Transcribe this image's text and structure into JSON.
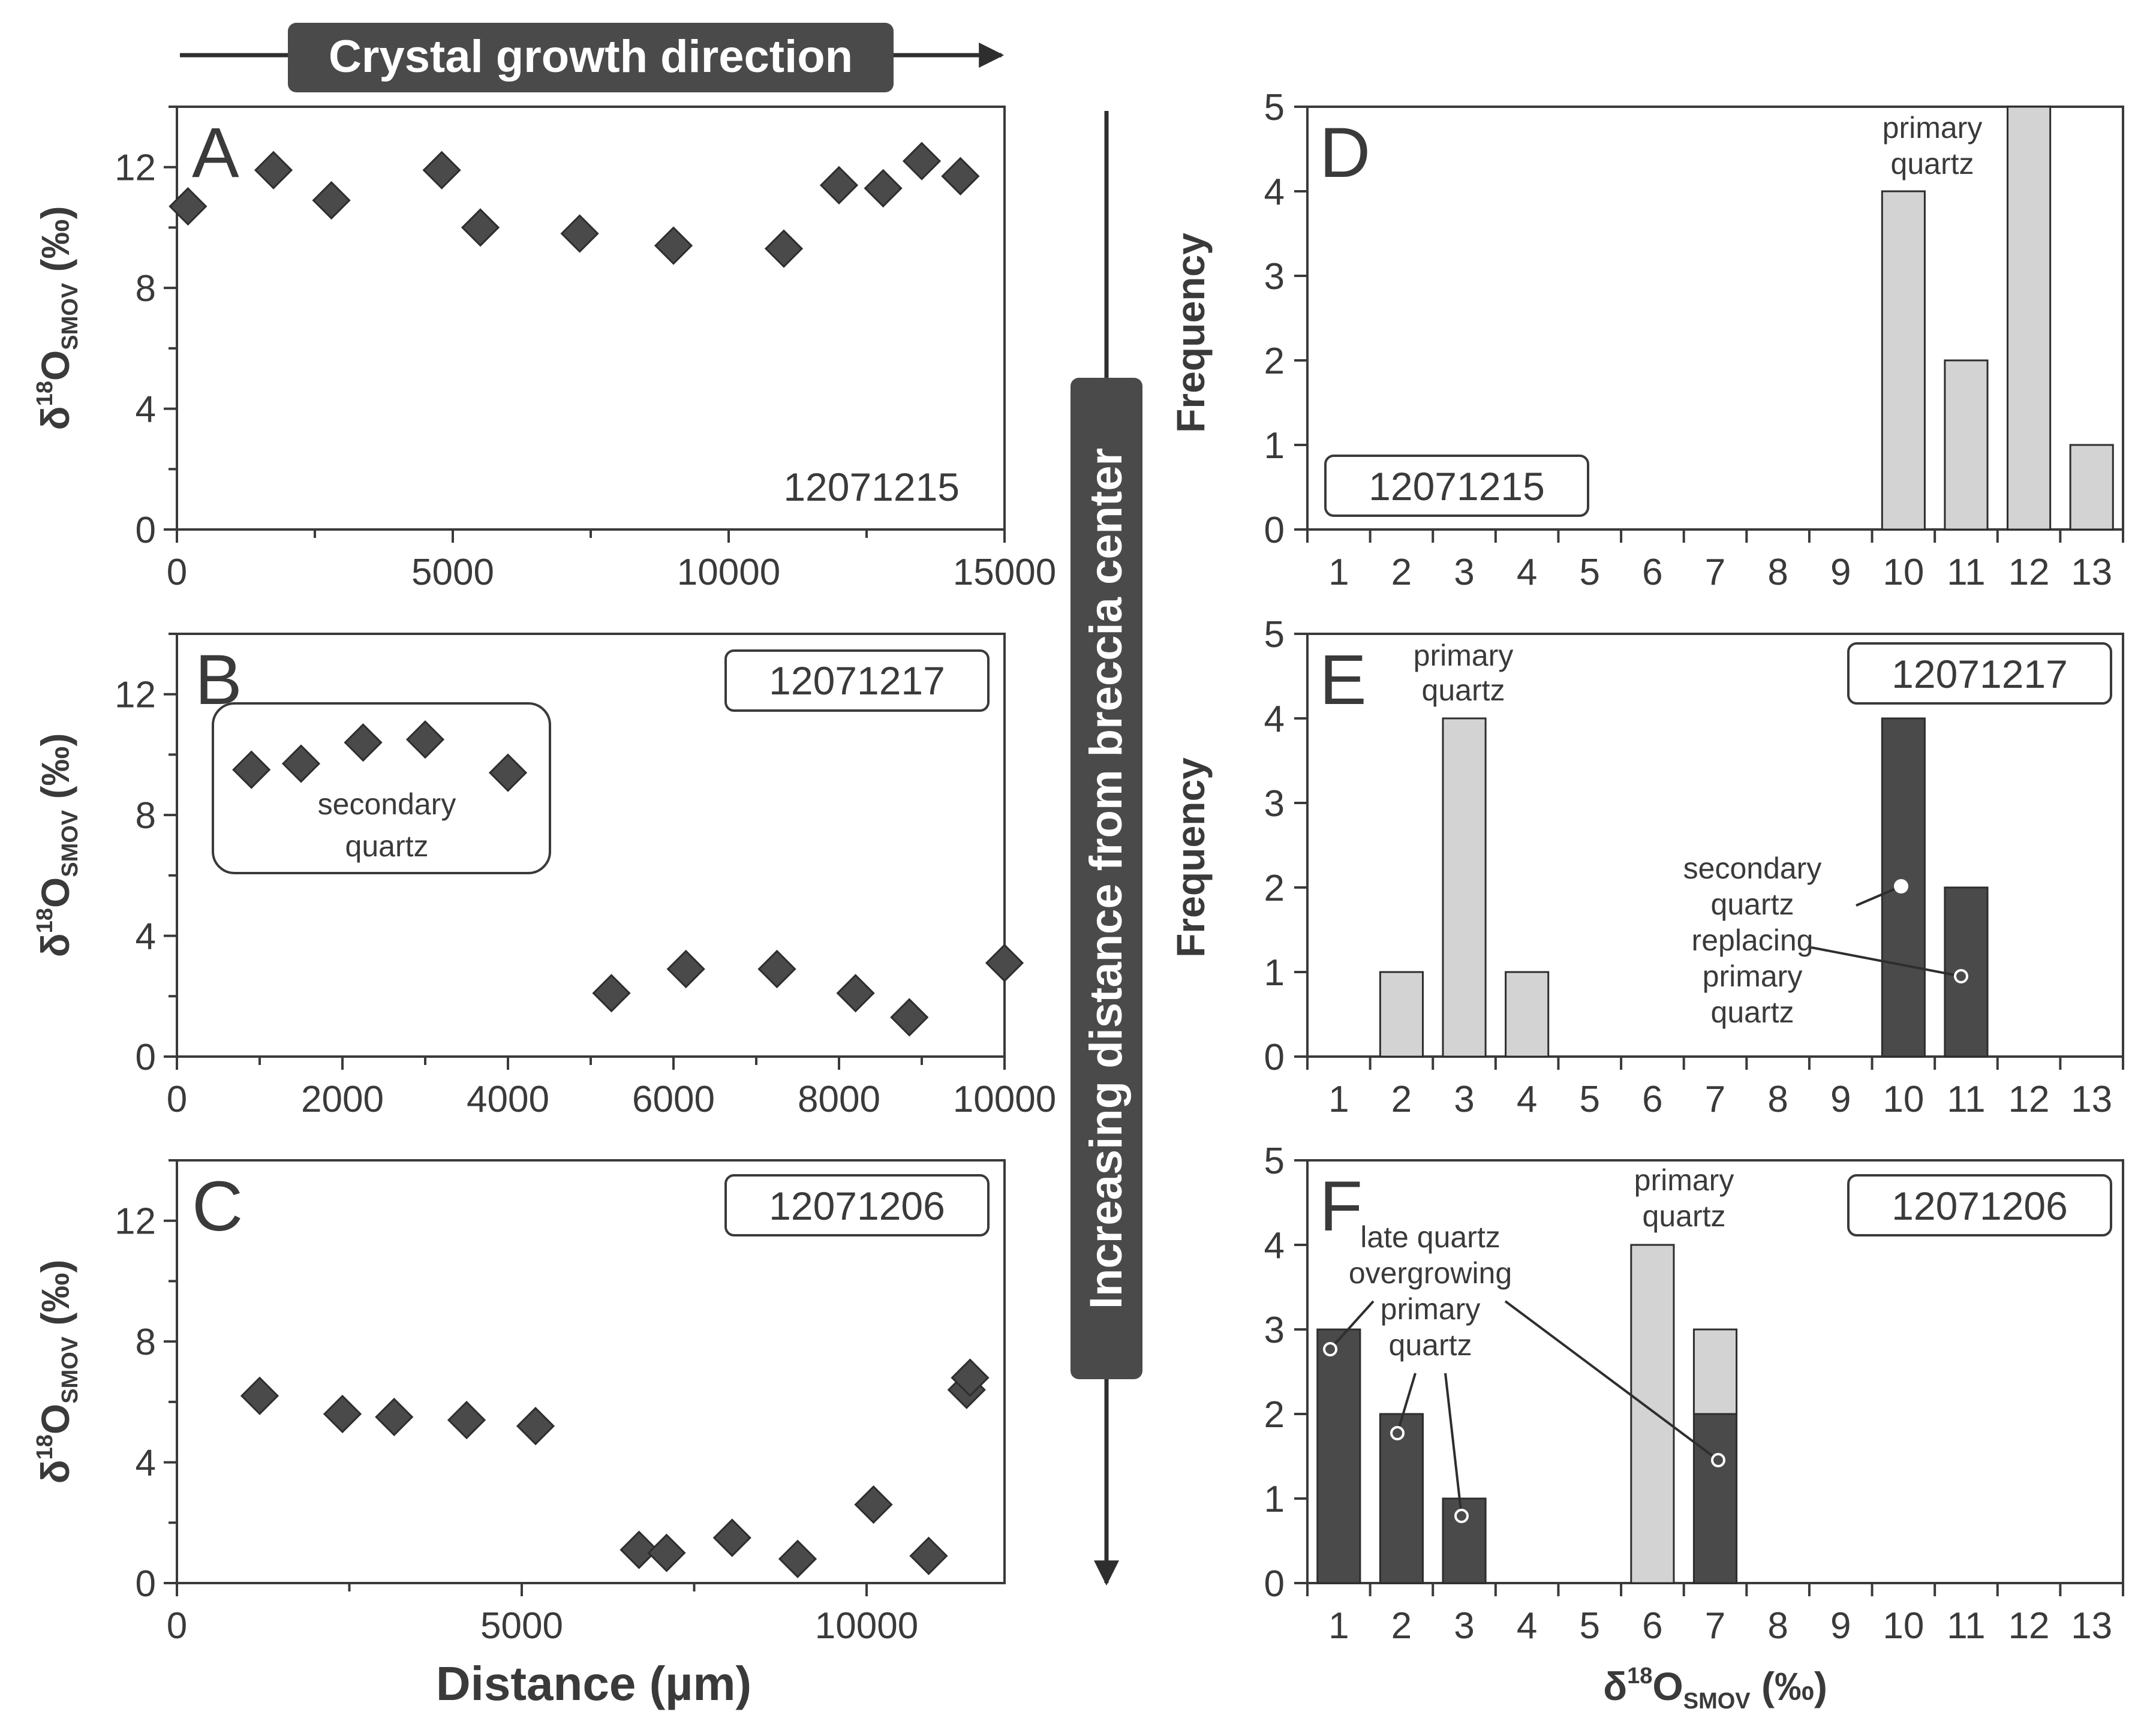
{
  "banner": {
    "label": "Crystal growth direction"
  },
  "side_arrow": {
    "label": "Increasing distance from breccia center"
  },
  "axis_text": {
    "y_delta": "δ",
    "y_sup": "18",
    "y_O": "O",
    "y_sub": "SMOV",
    "y_unit": " (‰)",
    "freq": "Frequency",
    "distance": "Distance (µm)"
  },
  "colors": {
    "diamond": "#4a4a4a",
    "bar_light": "#d3d3d3",
    "bar_dark": "#4a4a4a",
    "banner_bg": "#4a4a4a",
    "axis": "#3a3a3a"
  },
  "chart_data": [
    {
      "panel": "A",
      "type": "scatter",
      "sample": "12071215",
      "xlabel": "",
      "ylabel": "δ18OSMOV (‰)",
      "xlim": [
        0,
        15000
      ],
      "ylim": [
        0,
        14
      ],
      "xticks": [
        0,
        5000,
        10000,
        15000
      ],
      "yticks": [
        0,
        4,
        8,
        12
      ],
      "xtick_labels": [
        "0",
        "5000",
        "10000",
        "15000"
      ],
      "ytick_labels": [
        "0",
        "4",
        "8",
        "12"
      ],
      "points": [
        [
          200,
          10.7
        ],
        [
          1750,
          11.9
        ],
        [
          2800,
          10.9
        ],
        [
          4800,
          11.9
        ],
        [
          5500,
          10.0
        ],
        [
          7300,
          9.8
        ],
        [
          9000,
          9.4
        ],
        [
          11000,
          9.3
        ],
        [
          12000,
          11.4
        ],
        [
          12800,
          11.3
        ],
        [
          13500,
          12.2
        ],
        [
          14200,
          11.7
        ]
      ],
      "annotations": []
    },
    {
      "panel": "B",
      "type": "scatter",
      "sample": "12071217",
      "xlabel": "",
      "ylabel": "δ18OSMOV (‰)",
      "xlim": [
        0,
        10000
      ],
      "ylim": [
        0,
        14
      ],
      "xticks": [
        0,
        2000,
        4000,
        6000,
        8000,
        10000
      ],
      "yticks": [
        0,
        4,
        8,
        12
      ],
      "xtick_labels": [
        "0",
        "2000",
        "4000",
        "6000",
        "8000",
        "10000"
      ],
      "ytick_labels": [
        "0",
        "4",
        "8",
        "12"
      ],
      "points": [
        [
          900,
          9.5
        ],
        [
          1500,
          9.7
        ],
        [
          2250,
          10.4
        ],
        [
          3000,
          10.5
        ],
        [
          4000,
          9.4
        ],
        [
          5250,
          2.1
        ],
        [
          6150,
          2.9
        ],
        [
          7250,
          2.9
        ],
        [
          8200,
          2.1
        ],
        [
          8850,
          1.3
        ],
        [
          10000,
          3.1
        ]
      ],
      "annotations": [
        "secondary",
        "quartz"
      ]
    },
    {
      "panel": "C",
      "type": "scatter",
      "sample": "12071206",
      "xlabel": "Distance (µm)",
      "ylabel": "δ18OSMOV (‰)",
      "xlim": [
        0,
        12000
      ],
      "ylim": [
        0,
        14
      ],
      "xticks": [
        0,
        5000,
        10000
      ],
      "yticks": [
        0,
        4,
        8,
        12
      ],
      "xtick_labels": [
        "0",
        "5000",
        "10000"
      ],
      "ytick_labels": [
        "0",
        "4",
        "8",
        "12"
      ],
      "points": [
        [
          1200,
          6.2
        ],
        [
          2400,
          5.6
        ],
        [
          3150,
          5.5
        ],
        [
          4200,
          5.4
        ],
        [
          5200,
          5.2
        ],
        [
          6700,
          1.1
        ],
        [
          7100,
          1.0
        ],
        [
          8050,
          1.5
        ],
        [
          9000,
          0.8
        ],
        [
          10100,
          2.6
        ],
        [
          10900,
          0.9
        ],
        [
          11450,
          6.4
        ],
        [
          11500,
          6.8
        ]
      ],
      "annotations": []
    },
    {
      "panel": "D",
      "type": "bar",
      "sample": "12071215",
      "xlabel": "",
      "ylabel": "Frequency",
      "categories": [
        "1",
        "2",
        "3",
        "4",
        "5",
        "6",
        "7",
        "8",
        "9",
        "10",
        "11",
        "12",
        "13"
      ],
      "ylim": [
        0,
        5
      ],
      "yticks": [
        0,
        1,
        2,
        3,
        4,
        5
      ],
      "ytick_labels": [
        "0",
        "1",
        "2",
        "3",
        "4",
        "5"
      ],
      "series": [
        {
          "name": "primary quartz",
          "color": "#d3d3d3",
          "values": [
            0,
            0,
            0,
            0,
            0,
            0,
            0,
            0,
            0,
            4,
            2,
            5,
            1
          ]
        }
      ],
      "annotations": [
        "primary",
        "quartz"
      ]
    },
    {
      "panel": "E",
      "type": "bar",
      "sample": "12071217",
      "xlabel": "",
      "ylabel": "Frequency",
      "categories": [
        "1",
        "2",
        "3",
        "4",
        "5",
        "6",
        "7",
        "8",
        "9",
        "10",
        "11",
        "12",
        "13"
      ],
      "ylim": [
        0,
        5
      ],
      "yticks": [
        0,
        1,
        2,
        3,
        4,
        5
      ],
      "ytick_labels": [
        "0",
        "1",
        "2",
        "3",
        "4",
        "5"
      ],
      "series": [
        {
          "name": "primary quartz",
          "color": "#d3d3d3",
          "values": [
            0,
            1,
            4,
            1,
            0,
            0,
            0,
            0,
            0,
            0,
            0,
            0,
            0
          ]
        },
        {
          "name": "secondary quartz replacing primary quartz",
          "color": "#4a4a4a",
          "values": [
            0,
            0,
            0,
            0,
            0,
            0,
            0,
            0,
            0,
            4,
            2,
            0,
            0
          ]
        }
      ],
      "annotations": [
        "primary",
        "quartz",
        "secondary",
        "quartz",
        "replacing",
        "primary",
        "quartz"
      ]
    },
    {
      "panel": "F",
      "type": "bar",
      "sample": "12071206",
      "xlabel": "δ18OSMOV (‰)",
      "ylabel": "",
      "categories": [
        "1",
        "2",
        "3",
        "4",
        "5",
        "6",
        "7",
        "8",
        "9",
        "10",
        "11",
        "12",
        "13"
      ],
      "ylim": [
        0,
        5
      ],
      "yticks": [
        0,
        1,
        2,
        3,
        4,
        5
      ],
      "ytick_labels": [
        "0",
        "1",
        "2",
        "3",
        "4",
        "5"
      ],
      "series": [
        {
          "name": "late quartz overgrowing primary quartz",
          "color": "#4a4a4a",
          "values": [
            3,
            2,
            1,
            0,
            0,
            0,
            2,
            0,
            0,
            0,
            0,
            0,
            0
          ]
        },
        {
          "name": "primary quartz",
          "color": "#d3d3d3",
          "values": [
            0,
            0,
            0,
            0,
            0,
            4,
            1,
            0,
            0,
            0,
            0,
            0,
            0
          ]
        }
      ],
      "annotations": [
        "primary",
        "quartz",
        "late quartz",
        "overgrowing",
        "primary",
        "quartz"
      ]
    }
  ]
}
